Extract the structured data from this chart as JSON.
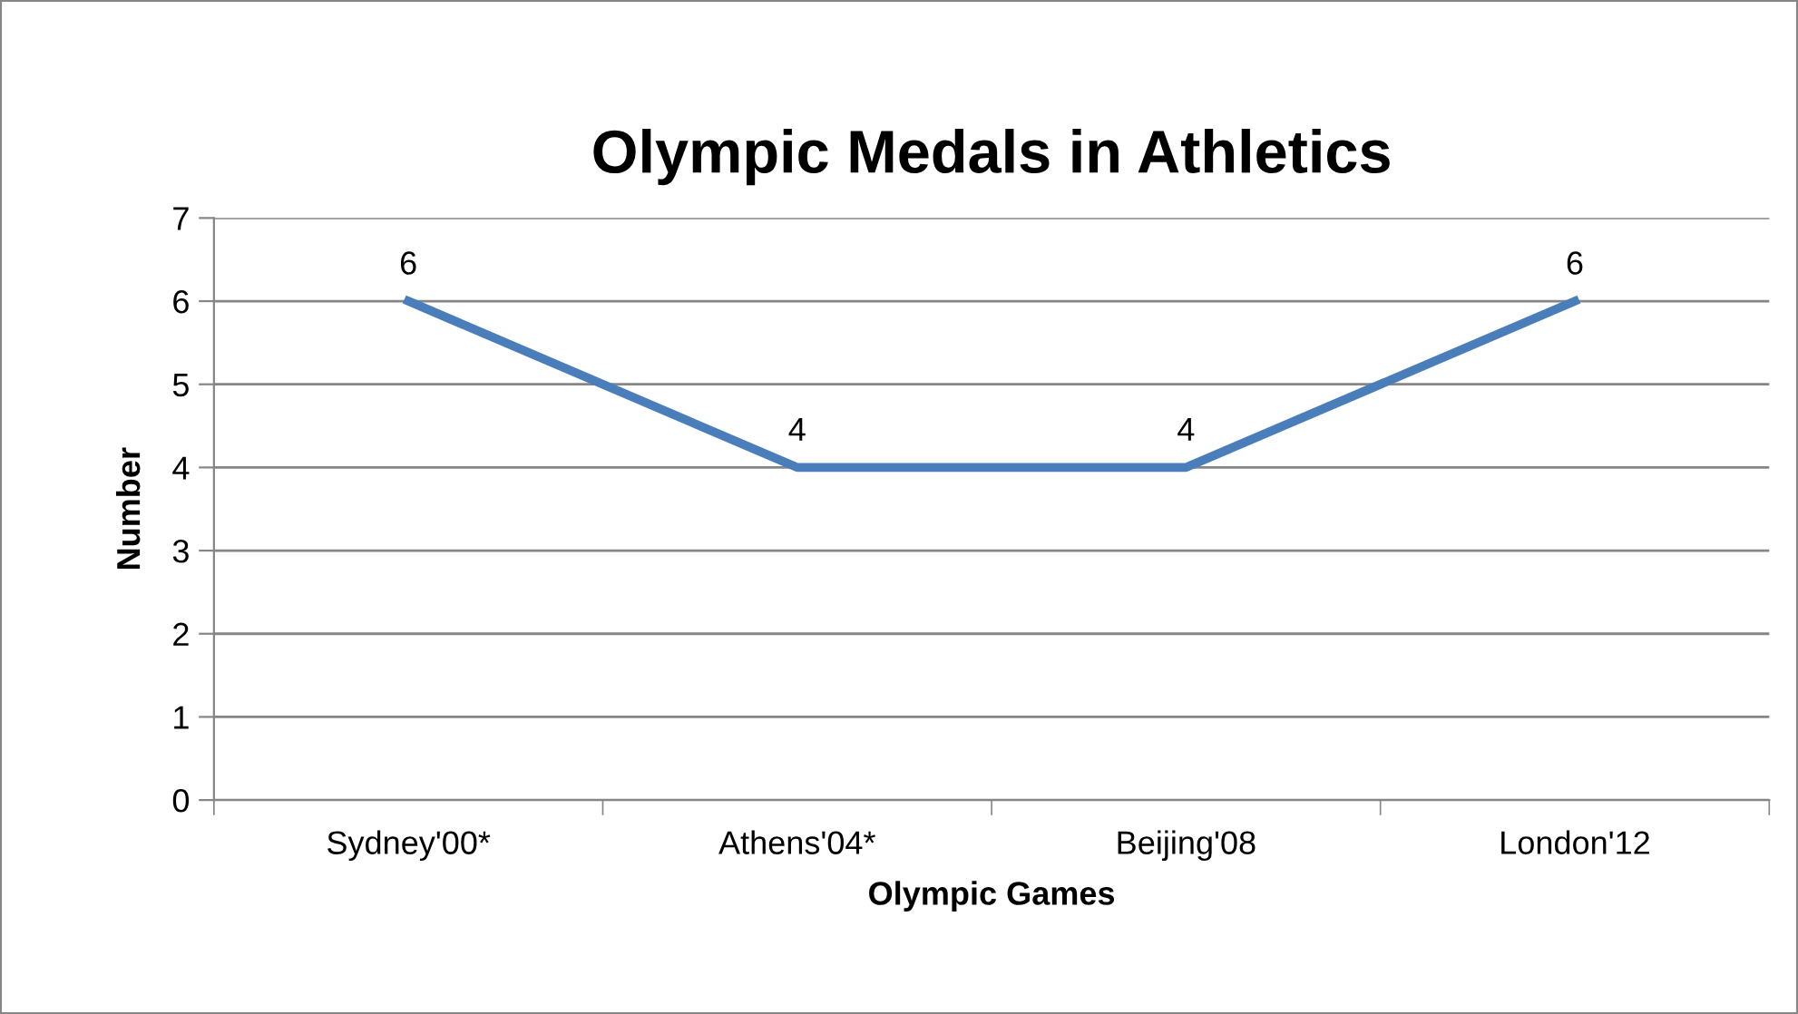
{
  "chart_data": {
    "type": "line",
    "title": "Olympic Medals in Athletics",
    "xlabel": "Olympic Games",
    "ylabel": "Number",
    "categories": [
      "Sydney'00*",
      "Athens'04*",
      "Beijing'08",
      "London'12"
    ],
    "series": [
      {
        "color": "#4a7ebb",
        "values": [
          6,
          4,
          4,
          6
        ]
      }
    ],
    "ylim": [
      0,
      7
    ],
    "yticks": [
      0,
      1,
      2,
      3,
      4,
      5,
      6,
      7
    ],
    "grid": "y",
    "data_labels": true,
    "marker": "none",
    "line_style": "solid",
    "legend": false
  }
}
